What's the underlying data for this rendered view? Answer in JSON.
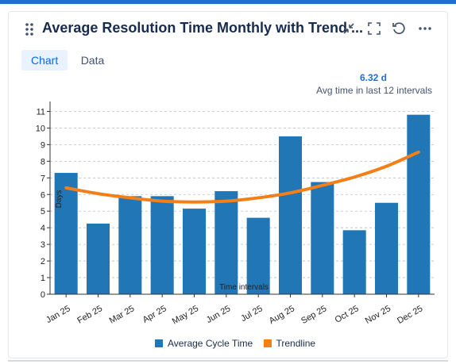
{
  "header": {
    "title": "Average Resolution Time Monthly with Trend ...",
    "icons": [
      "drag-handle-icon",
      "collapse-icon",
      "fullscreen-icon",
      "refresh-icon",
      "more-icon"
    ]
  },
  "tabs": [
    {
      "label": "Chart",
      "active": true
    },
    {
      "label": "Data",
      "active": false
    }
  ],
  "summary": {
    "value": "6.32 d",
    "label": "Avg time in last 12 intervals"
  },
  "legend": [
    {
      "label": "Average Cycle Time",
      "color": "#2176b6"
    },
    {
      "label": "Trendline",
      "color": "#f57f17"
    }
  ],
  "colors": {
    "accent": "#1f6fd1",
    "bar": "#2176b6",
    "trend": "#f57f17"
  },
  "chart_data": {
    "type": "bar",
    "categories": [
      "Jan 25",
      "Feb 25",
      "Mar 25",
      "Apr 25",
      "May 25",
      "Jun 25",
      "Jul 25",
      "Aug 25",
      "Sep 25",
      "Oct 25",
      "Nov 25",
      "Dec 25"
    ],
    "series": [
      {
        "name": "Average Cycle Time",
        "values": [
          7.3,
          4.25,
          5.9,
          5.9,
          5.15,
          6.2,
          4.6,
          9.5,
          6.75,
          3.85,
          5.5,
          10.8
        ]
      },
      {
        "name": "Trendline",
        "type": "line",
        "values": [
          6.4,
          6.05,
          5.8,
          5.6,
          5.55,
          5.6,
          5.8,
          6.1,
          6.55,
          7.05,
          7.7,
          8.55
        ]
      }
    ],
    "xlabel": "Time intervals",
    "ylabel": "Days",
    "ylim": [
      0,
      11.5
    ],
    "yticks": [
      0,
      1,
      2,
      3,
      4,
      5,
      6,
      7,
      8,
      9,
      10,
      11
    ],
    "grid": true,
    "legend_position": "bottom"
  }
}
